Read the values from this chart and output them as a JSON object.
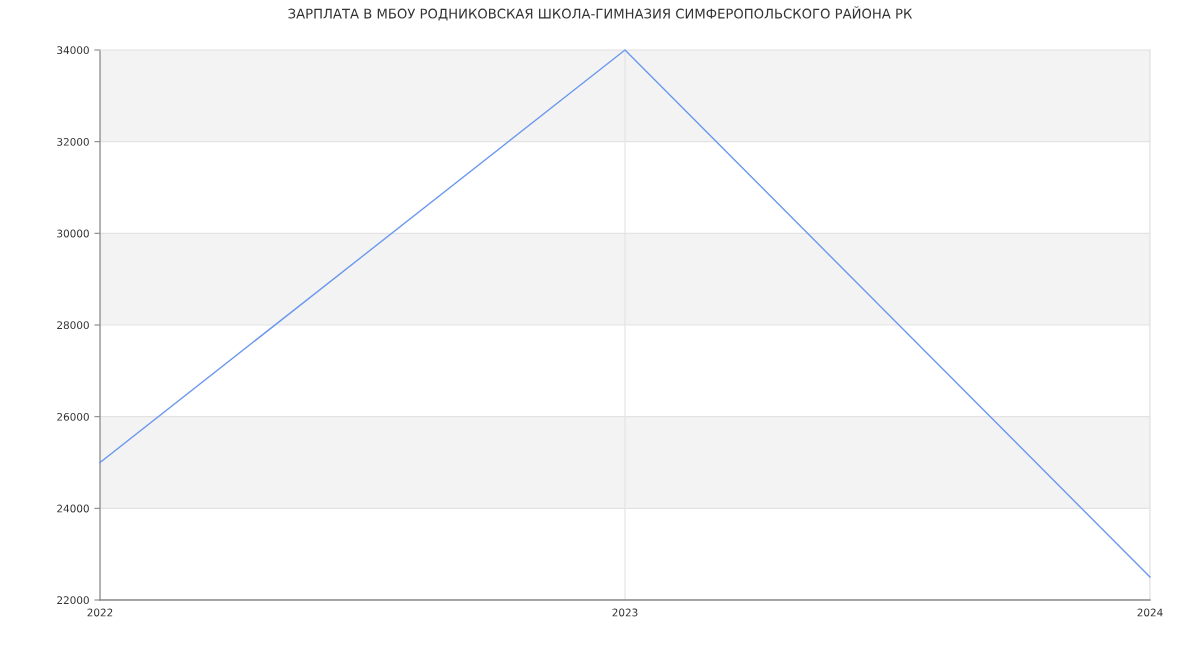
{
  "chart_data": {
    "type": "line",
    "title": "ЗАРПЛАТА В МБОУ РОДНИКОВСКАЯ ШКОЛА-ГИМНАЗИЯ СИМФЕРОПОЛЬСКОГО РАЙОНА РК",
    "categories": [
      "2022",
      "2023",
      "2024"
    ],
    "series": [
      {
        "color": "#6b98ee",
        "values": [
          25000,
          34000,
          22500
        ]
      }
    ],
    "ylim": [
      22000,
      34000
    ],
    "yticks": [
      22000,
      24000,
      26000,
      28000,
      30000,
      32000,
      34000
    ],
    "grid": true,
    "line_style": "solid",
    "bands": [
      {
        "axis": "y",
        "from": 24000,
        "to": 26000,
        "color": "#f3f3f3"
      },
      {
        "axis": "y",
        "from": 28000,
        "to": 30000,
        "color": "#f3f3f3"
      },
      {
        "axis": "y",
        "from": 32000,
        "to": 34000,
        "color": "#f3f3f3"
      }
    ]
  }
}
